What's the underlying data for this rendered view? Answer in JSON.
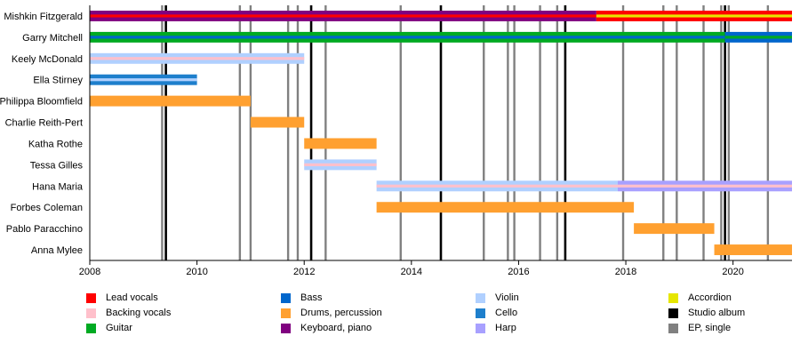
{
  "chart_data": {
    "type": "timeline",
    "title": "",
    "xlim": [
      2008,
      2021.1
    ],
    "x_ticks": [
      2008,
      2010,
      2012,
      2014,
      2016,
      2018,
      2020
    ],
    "instruments": {
      "lead": {
        "label": "Lead vocals",
        "color": "#ff0000"
      },
      "backing": {
        "label": "Backing vocals",
        "color": "#ffc0cb"
      },
      "guitar": {
        "label": "Guitar",
        "color": "#00aa22"
      },
      "bass": {
        "label": "Bass",
        "color": "#0066cc"
      },
      "drums": {
        "label": "Drums, percussion",
        "color": "#ffa030"
      },
      "keys": {
        "label": "Keyboard, piano",
        "color": "#800080"
      },
      "violin": {
        "label": "Violin",
        "color": "#b0d0ff"
      },
      "cello": {
        "label": "Cello",
        "color": "#1e7fcc"
      },
      "harp": {
        "label": "Harp",
        "color": "#a8a0ff"
      },
      "accordion": {
        "label": "Accordion",
        "color": "#e6e600"
      },
      "studio": {
        "label": "Studio album",
        "color": "#000000"
      },
      "ep": {
        "label": "EP, single",
        "color": "#808080"
      }
    },
    "legend_columns": [
      [
        "lead",
        "backing",
        "guitar"
      ],
      [
        "bass",
        "drums",
        "keys"
      ],
      [
        "violin",
        "cello",
        "harp"
      ],
      [
        "accordion",
        "studio",
        "ep"
      ]
    ],
    "members": [
      {
        "name": "Mishkin Fitzgerald",
        "periods": [
          {
            "start": 2008.0,
            "end": 2017.45,
            "main": "keys",
            "stripe": "lead"
          },
          {
            "start": 2017.45,
            "end": 2021.1,
            "main": "lead",
            "stripe": "accordion"
          }
        ]
      },
      {
        "name": "Garry Mitchell",
        "periods": [
          {
            "start": 2008.0,
            "end": 2019.85,
            "main": "guitar",
            "stripe": "bass"
          },
          {
            "start": 2019.85,
            "end": 2021.1,
            "main": "bass",
            "stripe": "guitar"
          }
        ]
      },
      {
        "name": "Keely McDonald",
        "periods": [
          {
            "start": 2008.0,
            "end": 2012.0,
            "main": "violin",
            "stripe": "backing"
          }
        ]
      },
      {
        "name": "Ella Stirney",
        "periods": [
          {
            "start": 2008.0,
            "end": 2010.0,
            "main": "cello",
            "stripe": "violin"
          }
        ]
      },
      {
        "name": "Philippa Bloomfield",
        "periods": [
          {
            "start": 2008.0,
            "end": 2011.0,
            "main": "drums",
            "stripe": null
          }
        ]
      },
      {
        "name": "Charlie Reith-Pert",
        "periods": [
          {
            "start": 2011.0,
            "end": 2012.0,
            "main": "drums",
            "stripe": null
          }
        ]
      },
      {
        "name": "Katha Rothe",
        "periods": [
          {
            "start": 2012.0,
            "end": 2013.35,
            "main": "drums",
            "stripe": null
          }
        ]
      },
      {
        "name": "Tessa Gilles",
        "periods": [
          {
            "start": 2012.0,
            "end": 2013.35,
            "main": "violin",
            "stripe": "backing"
          }
        ]
      },
      {
        "name": "Hana Maria",
        "periods": [
          {
            "start": 2013.35,
            "end": 2017.85,
            "main": "violin",
            "stripe": "backing"
          },
          {
            "start": 2017.85,
            "end": 2021.1,
            "main": "harp",
            "stripe": "backing"
          }
        ]
      },
      {
        "name": "Forbes Coleman",
        "periods": [
          {
            "start": 2013.35,
            "end": 2018.15,
            "main": "drums",
            "stripe": null
          }
        ]
      },
      {
        "name": "Pablo Paracchino",
        "periods": [
          {
            "start": 2018.15,
            "end": 2019.65,
            "main": "drums",
            "stripe": null
          }
        ]
      },
      {
        "name": "Anna Mylee",
        "periods": [
          {
            "start": 2019.65,
            "end": 2021.1,
            "main": "drums",
            "stripe": null
          }
        ]
      }
    ],
    "releases": [
      {
        "date": 2009.42,
        "kind": "studio"
      },
      {
        "date": 2012.13,
        "kind": "studio"
      },
      {
        "date": 2014.55,
        "kind": "studio"
      },
      {
        "date": 2016.87,
        "kind": "studio"
      },
      {
        "date": 2019.85,
        "kind": "studio"
      },
      {
        "date": 2009.35,
        "kind": "ep"
      },
      {
        "date": 2010.8,
        "kind": "ep"
      },
      {
        "date": 2011.0,
        "kind": "ep"
      },
      {
        "date": 2011.7,
        "kind": "ep"
      },
      {
        "date": 2011.88,
        "kind": "ep"
      },
      {
        "date": 2012.4,
        "kind": "ep"
      },
      {
        "date": 2013.8,
        "kind": "ep"
      },
      {
        "date": 2015.35,
        "kind": "ep"
      },
      {
        "date": 2015.8,
        "kind": "ep"
      },
      {
        "date": 2015.92,
        "kind": "ep"
      },
      {
        "date": 2016.4,
        "kind": "ep"
      },
      {
        "date": 2016.72,
        "kind": "ep"
      },
      {
        "date": 2017.95,
        "kind": "ep"
      },
      {
        "date": 2018.7,
        "kind": "ep"
      },
      {
        "date": 2018.95,
        "kind": "ep"
      },
      {
        "date": 2019.45,
        "kind": "ep"
      },
      {
        "date": 2019.78,
        "kind": "ep"
      },
      {
        "date": 2019.92,
        "kind": "ep"
      },
      {
        "date": 2020.65,
        "kind": "ep"
      }
    ]
  }
}
